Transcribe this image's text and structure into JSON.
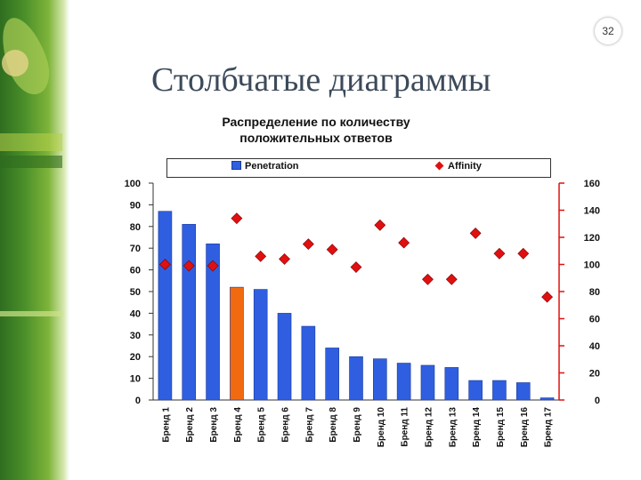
{
  "slide": {
    "page_number": "32",
    "title": "Столбчатые диаграммы"
  },
  "chart_data": {
    "type": "bar",
    "title_lines": [
      "Распределение по количеству",
      "положительных ответов"
    ],
    "categories": [
      "Бренд 1",
      "Бренд 2",
      "Бренд 3",
      "Бренд 4",
      "Бренд 5",
      "Бренд 6",
      "Бренд 7",
      "Бренд 8",
      "Бренд 9",
      "Бренд 10",
      "Бренд 11",
      "Бренд 12",
      "Бренд 13",
      "Бренд 14",
      "Бренд 15",
      "Бренд 16",
      "Бренд 17"
    ],
    "series": [
      {
        "name": "Penetration",
        "kind": "bar",
        "axis": "left",
        "values": [
          87,
          81,
          72,
          52,
          51,
          40,
          34,
          24,
          20,
          19,
          17,
          16,
          15,
          9,
          9,
          8,
          1
        ]
      },
      {
        "name": "Affinity",
        "kind": "marker",
        "axis": "right",
        "values": [
          100,
          99,
          99,
          134,
          106,
          104,
          115,
          111,
          98,
          129,
          116,
          89,
          89,
          123,
          108,
          108,
          76
        ]
      }
    ],
    "highlight_index": 3,
    "y_left": {
      "min": 0,
      "max": 100,
      "ticks": [
        0,
        10,
        20,
        30,
        40,
        50,
        60,
        70,
        80,
        90,
        100
      ]
    },
    "y_right": {
      "min": 0,
      "max": 160,
      "ticks": [
        0,
        20,
        40,
        60,
        80,
        100,
        120,
        140,
        160
      ]
    },
    "colors": {
      "bar": "#2f5fe0",
      "bar_edge": "#1b3a9a",
      "highlight_bar": "#f26a10",
      "marker": "#e01010",
      "right_axis": "#e01010"
    },
    "grid": false,
    "legend_position": "top"
  }
}
